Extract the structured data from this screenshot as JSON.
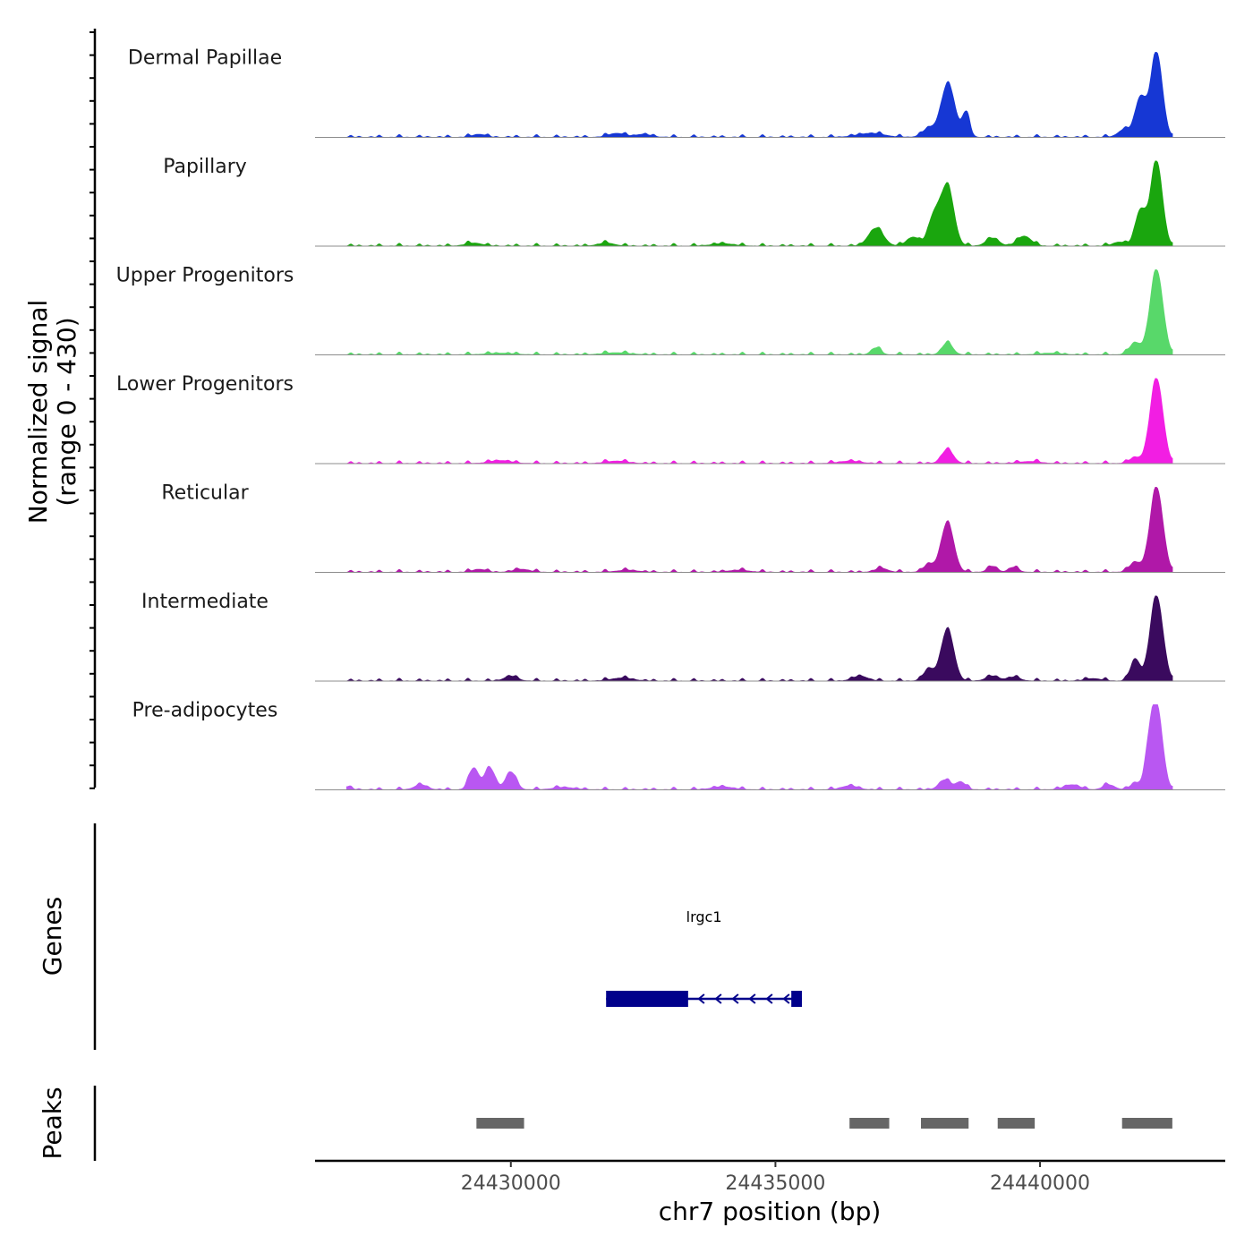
{
  "chart_data": {
    "type": "area",
    "ylabel_line1": "Normalized signal",
    "ylabel_line2": "(range 0 - 430)",
    "xlabel": "chr7 position (bp)",
    "xlim": [
      24426300,
      24443500
    ],
    "ylim": [
      0,
      430
    ],
    "x_ticks": [
      24430000,
      24435000,
      24440000
    ],
    "x_tick_labels": [
      "24430000",
      "24435000",
      "24440000"
    ],
    "genes_label": "Genes",
    "peaks_label": "Peaks",
    "baseline_color": "#8c8c8c",
    "series": [
      {
        "name": "Dermal Papillae",
        "color": "#1637d4",
        "peaks": [
          [
            24438260,
            270,
            130
          ],
          [
            24438600,
            120,
            70
          ],
          [
            24429400,
            15,
            120
          ],
          [
            24432000,
            20,
            150
          ],
          [
            24432500,
            15,
            150
          ],
          [
            24436800,
            20,
            250
          ],
          [
            24437900,
            45,
            120
          ],
          [
            24442200,
            430,
            110
          ],
          [
            24441900,
            200,
            100
          ],
          [
            24441600,
            40,
            120
          ]
        ]
      },
      {
        "name": "Papillary",
        "color": "#1aa60e",
        "peaks": [
          [
            24438250,
            300,
            120
          ],
          [
            24438000,
            150,
            110
          ],
          [
            24437600,
            45,
            120
          ],
          [
            24436900,
            90,
            140
          ],
          [
            24439700,
            50,
            130
          ],
          [
            24439100,
            40,
            120
          ],
          [
            24442200,
            430,
            110
          ],
          [
            24441900,
            180,
            100
          ],
          [
            24441500,
            20,
            120
          ],
          [
            24429300,
            15,
            150
          ],
          [
            24431800,
            15,
            150
          ],
          [
            24434000,
            12,
            200
          ]
        ]
      },
      {
        "name": "Upper Progenitors",
        "color": "#58d86a",
        "peaks": [
          [
            24442200,
            430,
            120
          ],
          [
            24441800,
            60,
            110
          ],
          [
            24438250,
            60,
            100
          ],
          [
            24436900,
            35,
            90
          ],
          [
            24432000,
            10,
            250
          ],
          [
            24429800,
            8,
            250
          ],
          [
            24440200,
            8,
            200
          ]
        ]
      },
      {
        "name": "Lower Progenitors",
        "color": "#f21ee3",
        "peaks": [
          [
            24442200,
            430,
            120
          ],
          [
            24441800,
            30,
            110
          ],
          [
            24438250,
            70,
            110
          ],
          [
            24429800,
            15,
            200
          ],
          [
            24432000,
            12,
            200
          ],
          [
            24436400,
            12,
            200
          ],
          [
            24439800,
            10,
            200
          ]
        ]
      },
      {
        "name": "Reticular",
        "color": "#b018a8",
        "peaks": [
          [
            24442200,
            430,
            120
          ],
          [
            24441800,
            50,
            110
          ],
          [
            24438250,
            250,
            120
          ],
          [
            24437900,
            40,
            100
          ],
          [
            24437000,
            20,
            120
          ],
          [
            24439100,
            30,
            90
          ],
          [
            24439500,
            25,
            90
          ],
          [
            24429400,
            15,
            120
          ],
          [
            24430200,
            15,
            150
          ],
          [
            24432200,
            10,
            200
          ],
          [
            24434300,
            10,
            200
          ]
        ]
      },
      {
        "name": "Intermediate",
        "color": "#3a0a5e",
        "peaks": [
          [
            24442200,
            430,
            120
          ],
          [
            24441800,
            110,
            90
          ],
          [
            24438250,
            260,
            120
          ],
          [
            24437900,
            60,
            100
          ],
          [
            24436600,
            25,
            140
          ],
          [
            24439100,
            25,
            120
          ],
          [
            24439500,
            20,
            120
          ],
          [
            24430000,
            25,
            120
          ],
          [
            24432100,
            15,
            200
          ],
          [
            24441000,
            12,
            150
          ]
        ]
      },
      {
        "name": "Pre-adipocytes",
        "color": "#b957f2",
        "peaks": [
          [
            24442200,
            430,
            110
          ],
          [
            24442050,
            120,
            80
          ],
          [
            24441800,
            35,
            90
          ],
          [
            24429300,
            110,
            90
          ],
          [
            24429600,
            110,
            100
          ],
          [
            24430000,
            90,
            100
          ],
          [
            24428300,
            25,
            120
          ],
          [
            24426900,
            15,
            80
          ],
          [
            24431000,
            12,
            200
          ],
          [
            24434000,
            15,
            200
          ],
          [
            24436400,
            20,
            150
          ],
          [
            24438200,
            50,
            110
          ],
          [
            24438500,
            40,
            90
          ],
          [
            24440600,
            25,
            150
          ],
          [
            24441300,
            25,
            110
          ]
        ]
      }
    ],
    "gene": {
      "name": "lrgc1",
      "start": 24431800,
      "end": 24435500,
      "thick_start": 24431800,
      "thick_end": 24433350,
      "end_block_start": 24435300,
      "strand": "-",
      "color": "#00008b"
    },
    "peak_regions": [
      [
        24429350,
        24430250
      ],
      [
        24436400,
        24437150
      ],
      [
        24437750,
        24438650
      ],
      [
        24439200,
        24439900
      ],
      [
        24441550,
        24442500
      ]
    ],
    "peak_color": "#666666"
  }
}
